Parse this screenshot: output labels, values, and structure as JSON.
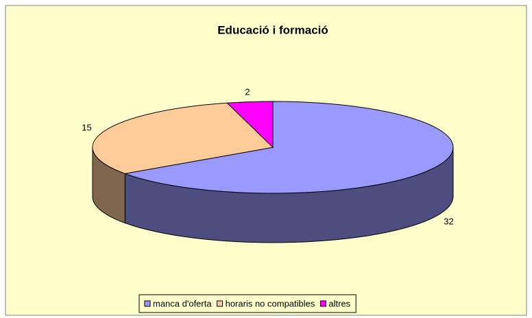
{
  "chart_data": {
    "type": "pie",
    "title": "Educació i formació",
    "categories": [
      "manca d'oferta",
      "horaris no compatibles",
      "altres"
    ],
    "values": [
      32,
      15,
      2
    ],
    "colors": [
      "#9999ff",
      "#ffcc99",
      "#ff00ff"
    ],
    "legend": "bottom"
  }
}
